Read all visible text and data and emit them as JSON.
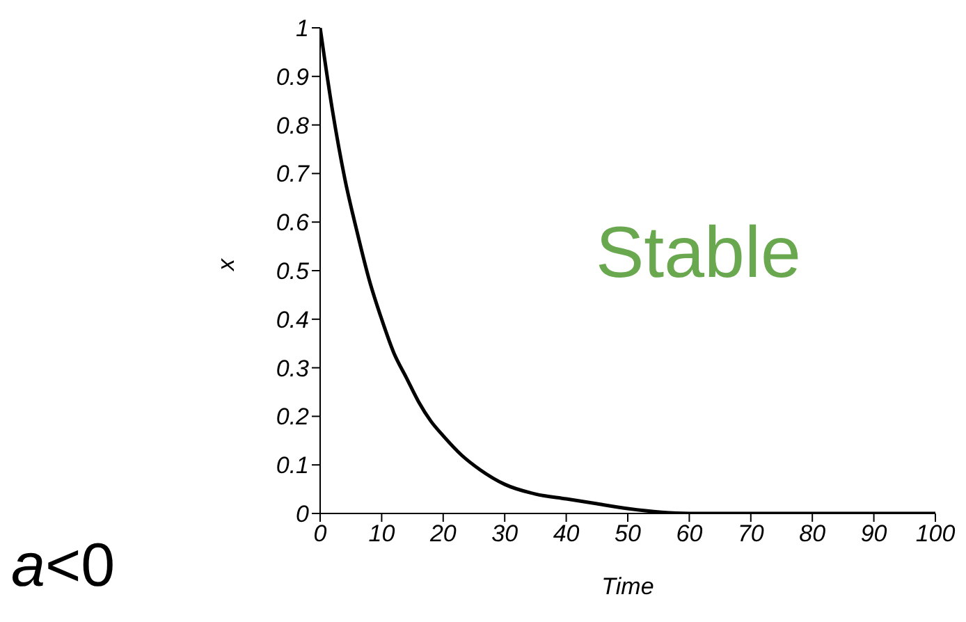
{
  "chart_data": {
    "type": "line",
    "xlabel": "Time",
    "ylabel": "x",
    "x": [
      0,
      2,
      4,
      6,
      8,
      10,
      12,
      14,
      16,
      18,
      20,
      23,
      26,
      30,
      35,
      40,
      45,
      50,
      60,
      70,
      80,
      90,
      100
    ],
    "series": [
      {
        "color": "#000000",
        "values": [
          1,
          0.83,
          0.69,
          0.58,
          0.48,
          0.4,
          0.33,
          0.28,
          0.23,
          0.19,
          0.16,
          0.12,
          0.09,
          0.06,
          0.04,
          0.03,
          0.02,
          0.01,
          0,
          0,
          0,
          0,
          0
        ]
      }
    ],
    "xlim": [
      0,
      100
    ],
    "xticks": [
      0,
      10,
      20,
      30,
      40,
      50,
      60,
      70,
      80,
      90,
      100
    ],
    "ylim": [
      0,
      1
    ],
    "yticks": [
      0,
      0.1,
      0.2,
      0.3,
      0.4,
      0.5,
      0.6,
      0.7,
      0.8,
      0.9,
      1
    ],
    "annotations": [
      "Stable",
      "a<0"
    ],
    "grid": false,
    "legend": false,
    "marker": "none",
    "line_style": "solid"
  }
}
